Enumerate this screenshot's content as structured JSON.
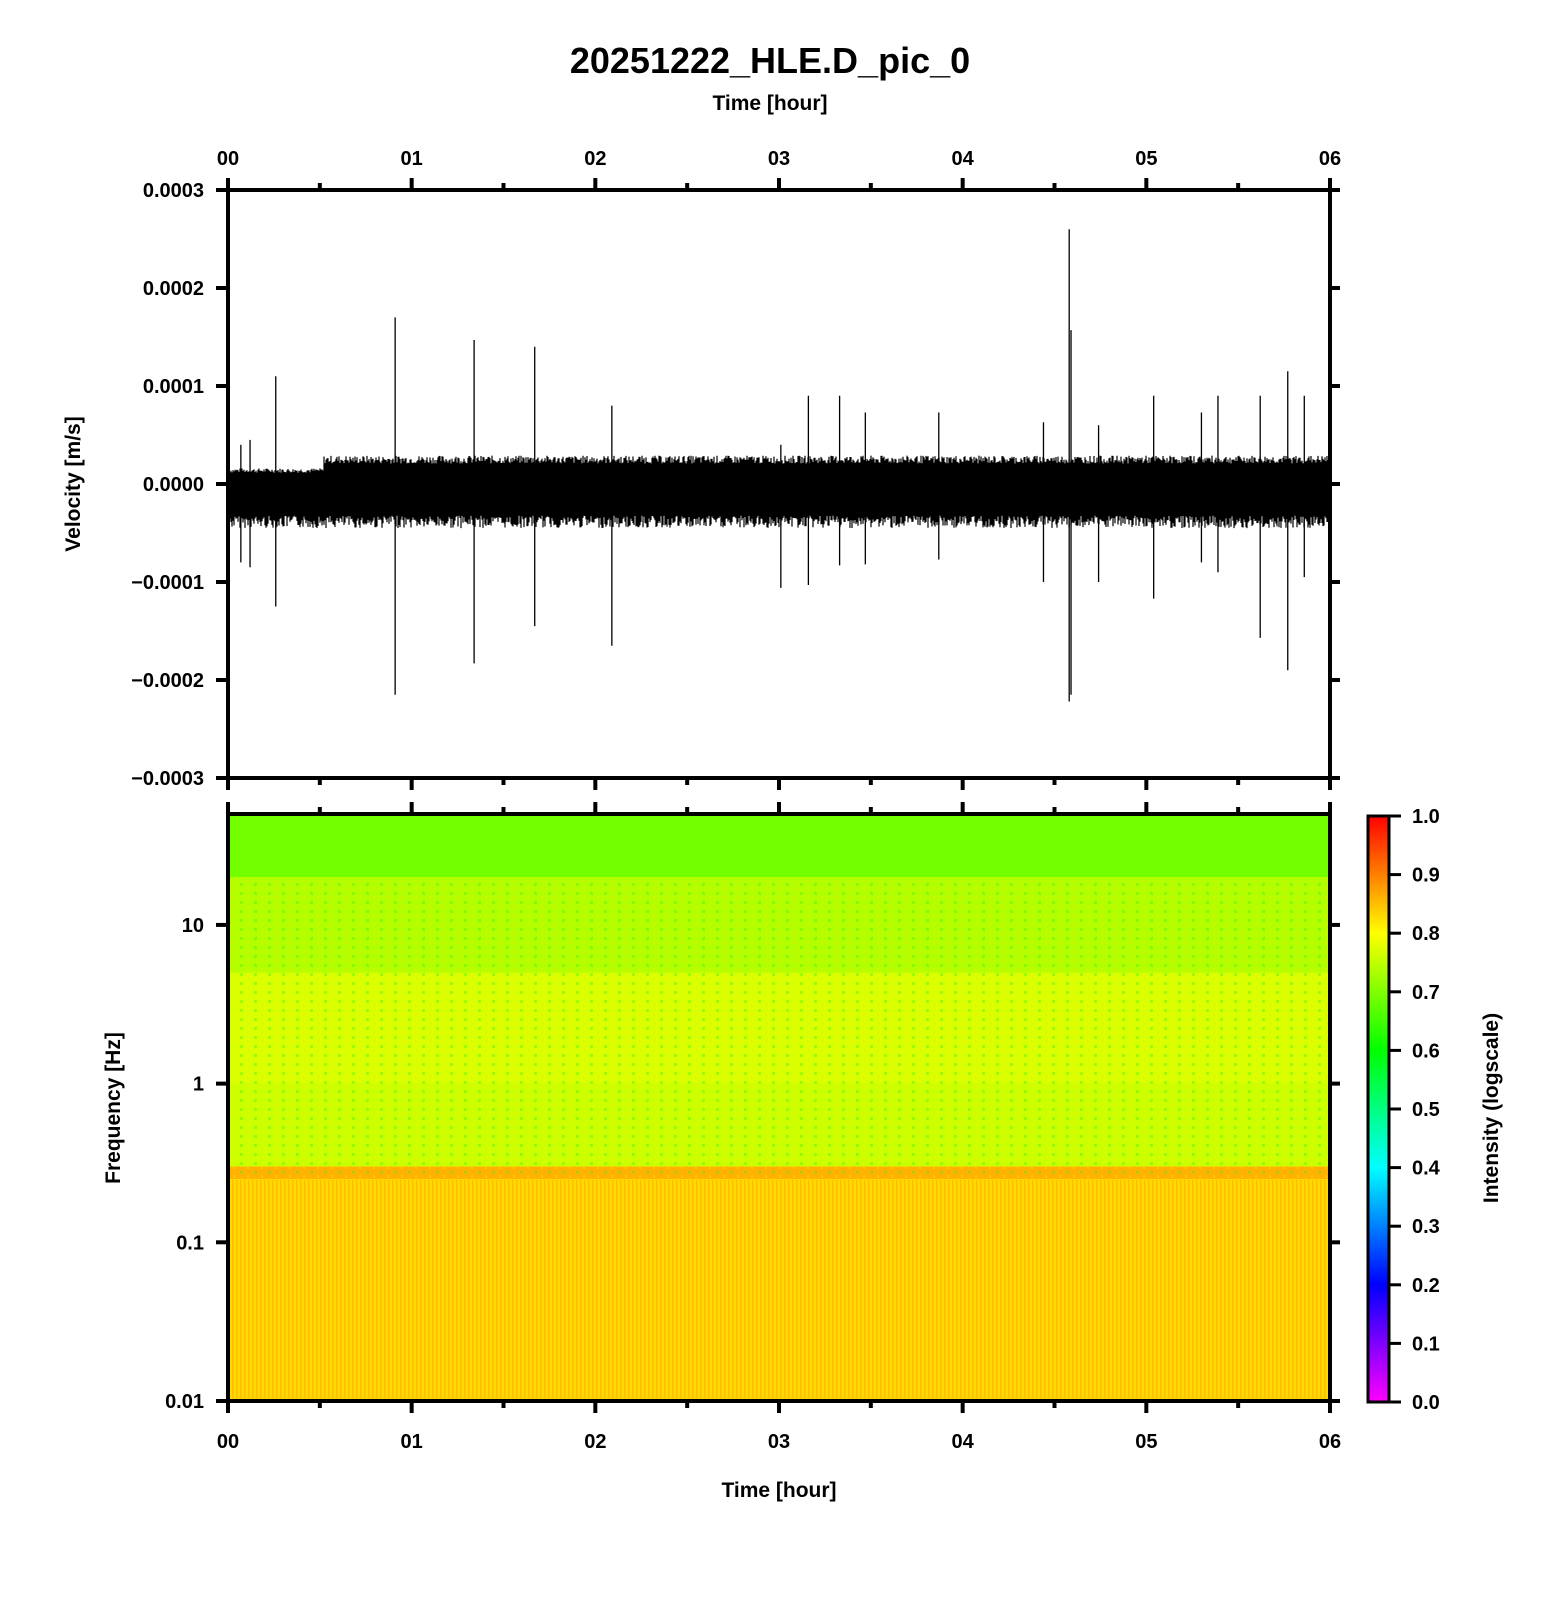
{
  "title": "20251222_HLE.D_pic_0",
  "colors": {
    "trace": "#000000",
    "frame": "#000000",
    "spectrogram_low_band": "#ffd200",
    "spectrogram_mid_band": "#ffff00",
    "spectrogram_high_band": "#66ff00"
  },
  "chart_data": [
    {
      "type": "line",
      "panel": "waveform",
      "title": "20251222_HLE.D_pic_0",
      "xlabel_top": "Time [hour]",
      "ylabel": "Velocity [m/s]",
      "xlim": [
        0,
        6
      ],
      "ylim": [
        -0.0003,
        0.0003
      ],
      "x_ticks": [
        "00",
        "01",
        "02",
        "03",
        "04",
        "05",
        "06"
      ],
      "y_ticks": [
        "0.0003",
        "0.0002",
        "0.0001",
        "0.0000",
        "−0.0001",
        "−0.0002",
        "−0.0003"
      ],
      "noise_envelope": [
        {
          "x_start": 0.0,
          "x_end": 0.52,
          "upper": 1.6e-05,
          "lower": -4.5e-05
        },
        {
          "x_start": 0.52,
          "x_end": 6.0,
          "upper": 2.9e-05,
          "lower": -4.5e-05
        }
      ],
      "spikes": [
        {
          "x": 0.07,
          "max": 4e-05,
          "min": -8e-05
        },
        {
          "x": 0.12,
          "max": 4.5e-05,
          "min": -8.5e-05
        },
        {
          "x": 0.26,
          "max": 0.00011,
          "min": -0.000125
        },
        {
          "x": 0.91,
          "max": 0.00017,
          "min": -0.000215
        },
        {
          "x": 1.34,
          "max": 0.000147,
          "min": -0.000183
        },
        {
          "x": 1.67,
          "max": 0.00014,
          "min": -0.000145
        },
        {
          "x": 2.09,
          "max": 8e-05,
          "min": -0.000165
        },
        {
          "x": 3.01,
          "max": 4e-05,
          "min": -0.000106
        },
        {
          "x": 3.16,
          "max": 9e-05,
          "min": -0.000103
        },
        {
          "x": 3.33,
          "max": 9e-05,
          "min": -8.3e-05
        },
        {
          "x": 3.47,
          "max": 7.3e-05,
          "min": -8.2e-05
        },
        {
          "x": 3.87,
          "max": 7.3e-05,
          "min": -7.7e-05
        },
        {
          "x": 4.44,
          "max": 6.3e-05,
          "min": -0.0001
        },
        {
          "x": 4.58,
          "max": 0.00026,
          "min": -0.000222
        },
        {
          "x": 4.59,
          "max": 0.000157,
          "min": -0.000215
        },
        {
          "x": 4.74,
          "max": 6e-05,
          "min": -0.0001
        },
        {
          "x": 5.04,
          "max": 9e-05,
          "min": -0.000117
        },
        {
          "x": 5.3,
          "max": 7.3e-05,
          "min": -8e-05
        },
        {
          "x": 5.39,
          "max": 9e-05,
          "min": -9e-05
        },
        {
          "x": 5.62,
          "max": 9e-05,
          "min": -0.000157
        },
        {
          "x": 5.77,
          "max": 0.000115,
          "min": -0.00019
        },
        {
          "x": 5.86,
          "max": 9e-05,
          "min": -9.5e-05
        }
      ]
    },
    {
      "type": "heatmap",
      "panel": "spectrogram",
      "xlabel": "Time [hour]",
      "ylabel": "Frequency [Hz]",
      "xlim": [
        0,
        6
      ],
      "ylim": [
        0.01,
        50
      ],
      "y_scale": "log",
      "x_ticks": [
        "00",
        "01",
        "02",
        "03",
        "04",
        "05",
        "06"
      ],
      "y_ticks": [
        "10",
        "1",
        "0.1",
        "0.01"
      ],
      "y_tick_values": [
        10,
        1,
        0.1,
        0.01
      ],
      "intensity_bands": [
        {
          "f_low": 0.01,
          "f_high": 0.25,
          "intensity": 0.83
        },
        {
          "f_low": 0.25,
          "f_high": 0.3,
          "intensity": 0.86
        },
        {
          "f_low": 0.3,
          "f_high": 1.0,
          "intensity": 0.76
        },
        {
          "f_low": 1.0,
          "f_high": 5.0,
          "intensity": 0.77
        },
        {
          "f_low": 5.0,
          "f_high": 20.0,
          "intensity": 0.74
        },
        {
          "f_low": 20.0,
          "f_high": 50.0,
          "intensity": 0.69
        }
      ],
      "colorbar": {
        "label": "Intensity (logscale)",
        "range": [
          0,
          1
        ],
        "ticks": [
          "1.0",
          "0.9",
          "0.8",
          "0.7",
          "0.6",
          "0.5",
          "0.4",
          "0.3",
          "0.2",
          "0.1",
          "0.0"
        ],
        "colors": [
          "#ff00ff",
          "#0000ff",
          "#00ffff",
          "#00ff00",
          "#ffff00",
          "#ff0000"
        ]
      }
    }
  ]
}
